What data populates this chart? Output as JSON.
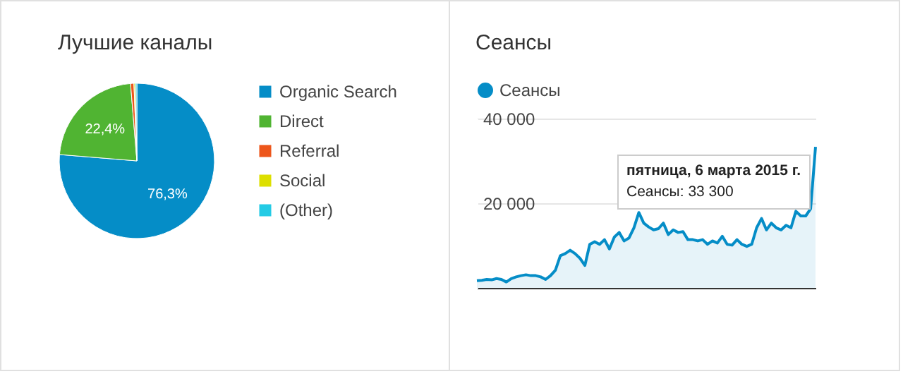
{
  "chart_data": [
    {
      "type": "pie",
      "title": "Лучшие каналы",
      "categories": [
        "Organic Search",
        "Direct",
        "Referral",
        "Social",
        "(Other)"
      ],
      "values": [
        76.3,
        22.4,
        0.7,
        0.3,
        0.3
      ],
      "colors": [
        "#058dc7",
        "#50b432",
        "#ed561b",
        "#dddf00",
        "#24cbe5"
      ],
      "value_labels": [
        "76,3%",
        "22,4%",
        null,
        null,
        null
      ],
      "legend": "right"
    },
    {
      "type": "area",
      "title": "Сеансы",
      "categories": [
        null,
        null,
        null,
        null,
        null,
        null,
        null,
        null,
        null,
        null,
        null,
        null,
        null,
        null,
        null,
        null,
        null,
        null,
        null,
        null,
        null,
        null,
        null,
        null,
        null,
        null,
        null,
        null,
        null,
        null,
        null,
        null,
        null,
        null,
        null,
        null,
        null,
        null,
        null,
        null,
        null,
        null,
        null,
        null,
        null,
        null,
        null,
        null,
        null,
        null,
        null,
        null,
        null,
        null,
        null,
        null,
        null,
        null,
        null,
        null,
        null,
        null,
        null,
        null,
        null,
        null,
        null,
        null,
        null,
        null
      ],
      "series": [
        {
          "name": "Сеансы",
          "color": "#058dc7",
          "values": [
            1700,
            1800,
            2000,
            1900,
            2200,
            2000,
            1400,
            2200,
            2600,
            2900,
            3100,
            2900,
            2900,
            2600,
            2000,
            2900,
            4200,
            7600,
            8100,
            8900,
            8100,
            7000,
            5300,
            10300,
            10900,
            10300,
            11400,
            9200,
            12000,
            13100,
            11100,
            11800,
            14200,
            17800,
            15300,
            14400,
            13700,
            14000,
            15300,
            12600,
            13700,
            13100,
            13300,
            11400,
            11400,
            11100,
            11400,
            10300,
            11100,
            10600,
            12200,
            10300,
            10100,
            11400,
            10300,
            9800,
            10300,
            14200,
            16400,
            13700,
            15300,
            14200,
            13700,
            14800,
            14200,
            18100,
            17000,
            17000,
            18700,
            33300
          ]
        }
      ],
      "ylim": [
        0,
        40000
      ],
      "yticks": [
        {
          "value": 0,
          "label": null
        },
        {
          "value": 20000,
          "label": "20 000"
        },
        {
          "value": 40000,
          "label": "40 000"
        }
      ],
      "grid": "y",
      "legend": "top left",
      "tick_labels": "y",
      "annotations": [
        "пятница, 6 марта 2015 г.",
        "Сеансы: 33 300"
      ]
    }
  ]
}
